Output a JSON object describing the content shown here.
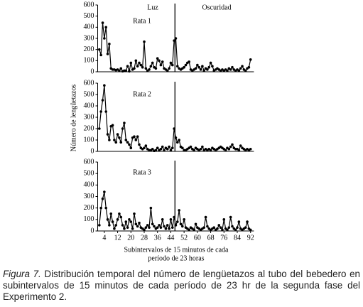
{
  "chart_data": [
    {
      "type": "line",
      "title": "Rata 1",
      "annotations": [
        "Luz",
        "Oscuridad"
      ],
      "x": [
        1,
        2,
        3,
        4,
        5,
        6,
        7,
        8,
        9,
        10,
        11,
        12,
        13,
        14,
        15,
        16,
        17,
        18,
        19,
        20,
        21,
        22,
        23,
        24,
        25,
        26,
        27,
        28,
        29,
        30,
        31,
        32,
        33,
        34,
        35,
        36,
        37,
        38,
        39,
        40,
        41,
        42,
        43,
        44,
        45,
        46,
        47,
        48,
        49,
        50,
        51,
        52,
        53,
        54,
        55,
        56,
        57,
        58,
        59,
        60,
        61,
        62,
        63,
        64,
        65,
        66,
        67,
        68,
        69,
        70,
        71,
        72,
        73,
        74,
        75,
        76,
        77,
        78,
        79,
        80,
        81,
        82,
        83,
        84,
        85,
        86,
        87,
        88,
        89,
        90,
        91,
        92
      ],
      "values": [
        200,
        150,
        440,
        300,
        400,
        160,
        250,
        30,
        20,
        20,
        15,
        20,
        10,
        30,
        5,
        10,
        10,
        50,
        5,
        80,
        20,
        30,
        100,
        50,
        80,
        60,
        40,
        270,
        30,
        10,
        20,
        50,
        80,
        40,
        30,
        120,
        100,
        60,
        90,
        30,
        20,
        10,
        30,
        80,
        60,
        280,
        300,
        50,
        30,
        20,
        30,
        40,
        60,
        80,
        90,
        20,
        10,
        20,
        30,
        60,
        40,
        20,
        50,
        10,
        30,
        20,
        40,
        80,
        50,
        10,
        20,
        30,
        20,
        10,
        20,
        10,
        20,
        10,
        30,
        20,
        40,
        20,
        10,
        20,
        10,
        30,
        50,
        20,
        10,
        30,
        40,
        110
      ],
      "color": "#000000",
      "xlim": [
        0,
        94
      ],
      "ylim": [
        0,
        600
      ],
      "yticks": [
        0,
        100,
        200,
        300,
        400,
        500,
        600
      ],
      "divider_x": 46.5
    },
    {
      "type": "line",
      "title": "Rata 2",
      "ylabel": "Número de lengüetazos",
      "x": [
        1,
        2,
        3,
        4,
        5,
        6,
        7,
        8,
        9,
        10,
        11,
        12,
        13,
        14,
        15,
        16,
        17,
        18,
        19,
        20,
        21,
        22,
        23,
        24,
        25,
        26,
        27,
        28,
        29,
        30,
        31,
        32,
        33,
        34,
        35,
        36,
        37,
        38,
        39,
        40,
        41,
        42,
        43,
        44,
        45,
        46,
        47,
        48,
        49,
        50,
        51,
        52,
        53,
        54,
        55,
        56,
        57,
        58,
        59,
        60,
        61,
        62,
        63,
        64,
        65,
        66,
        67,
        68,
        69,
        70,
        71,
        72,
        73,
        74,
        75,
        76,
        77,
        78,
        79,
        80,
        81,
        82,
        83,
        84,
        85,
        86,
        87,
        88,
        89,
        90,
        91,
        92
      ],
      "values": [
        200,
        350,
        450,
        580,
        350,
        150,
        100,
        220,
        230,
        100,
        80,
        150,
        120,
        80,
        200,
        250,
        100,
        80,
        60,
        30,
        120,
        130,
        100,
        130,
        60,
        30,
        20,
        30,
        50,
        20,
        10,
        10,
        20,
        5,
        10,
        30,
        10,
        20,
        40,
        10,
        30,
        20,
        40,
        10,
        30,
        200,
        120,
        80,
        100,
        40,
        30,
        10,
        10,
        20,
        30,
        40,
        20,
        10,
        30,
        20,
        10,
        20,
        40,
        10,
        20,
        10,
        20,
        10,
        30,
        20,
        10,
        20,
        30,
        40,
        30,
        20,
        10,
        30,
        20,
        40,
        60,
        30,
        20,
        20,
        10,
        50,
        30,
        20,
        10,
        20,
        10,
        20
      ],
      "color": "#000000",
      "xlim": [
        0,
        94
      ],
      "ylim": [
        0,
        600
      ],
      "yticks": [
        0,
        100,
        200,
        300,
        400,
        500,
        600
      ],
      "divider_x": 46.5
    },
    {
      "type": "line",
      "title": "Rata 3",
      "xlabel": [
        "Subintervalos de 15 minutos de cada",
        "período de 23 horas"
      ],
      "x": [
        1,
        2,
        3,
        4,
        5,
        6,
        7,
        8,
        9,
        10,
        11,
        12,
        13,
        14,
        15,
        16,
        17,
        18,
        19,
        20,
        21,
        22,
        23,
        24,
        25,
        26,
        27,
        28,
        29,
        30,
        31,
        32,
        33,
        34,
        35,
        36,
        37,
        38,
        39,
        40,
        41,
        42,
        43,
        44,
        45,
        46,
        47,
        48,
        49,
        50,
        51,
        52,
        53,
        54,
        55,
        56,
        57,
        58,
        59,
        60,
        61,
        62,
        63,
        64,
        65,
        66,
        67,
        68,
        69,
        70,
        71,
        72,
        73,
        74,
        75,
        76,
        77,
        78,
        79,
        80,
        81,
        82,
        83,
        84,
        85,
        86,
        87,
        88,
        89,
        90,
        91,
        92
      ],
      "values": [
        50,
        200,
        280,
        340,
        200,
        100,
        50,
        150,
        80,
        20,
        50,
        100,
        150,
        120,
        50,
        20,
        80,
        30,
        100,
        80,
        20,
        150,
        60,
        40,
        70,
        30,
        20,
        10,
        30,
        50,
        30,
        200,
        60,
        40,
        20,
        30,
        50,
        30,
        100,
        40,
        20,
        50,
        20,
        100,
        30,
        120,
        50,
        80,
        180,
        60,
        40,
        100,
        30,
        20,
        10,
        30,
        20,
        10,
        60,
        30,
        20,
        10,
        20,
        30,
        120,
        40,
        20,
        10,
        20,
        30,
        10,
        20,
        50,
        30,
        10,
        100,
        20,
        10,
        30,
        120,
        40,
        20,
        10,
        30,
        80,
        20,
        10,
        20,
        30,
        80,
        20,
        10
      ],
      "color": "#000000",
      "xlim": [
        0,
        94
      ],
      "ylim": [
        0,
        600
      ],
      "yticks": [
        0,
        100,
        200,
        300,
        400,
        500,
        600
      ],
      "xticks": [
        4,
        12,
        20,
        28,
        36,
        44,
        52,
        60,
        68,
        76,
        84,
        92
      ],
      "divider_x": 46.5
    }
  ],
  "caption": {
    "label": "Figura 7.",
    "text": "Distribución temporal del número de lengüetazos al tubo del bebedero en subintervalos de 15 minutos de cada período de 23 hr de la segunda fase del Experimento 2."
  }
}
